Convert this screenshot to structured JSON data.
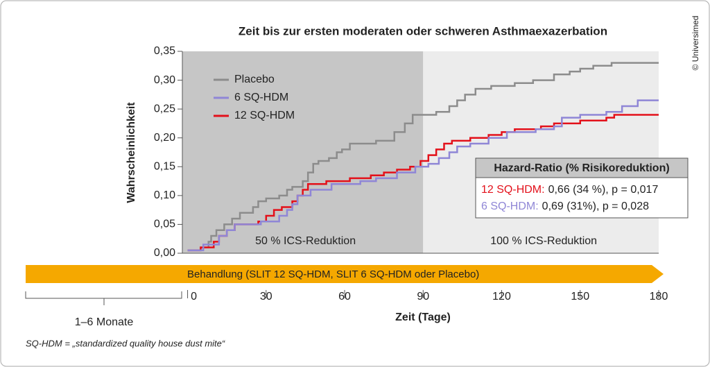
{
  "chart_data": {
    "type": "line",
    "title": "Zeit bis zur ersten moderaten oder schweren Asthmaexazerbation",
    "ylabel": "Wahrscheinlichkeit",
    "xlabel": "Zeit (Tage)",
    "xlim": [
      -2,
      180
    ],
    "xticks": [
      0,
      30,
      60,
      90,
      120,
      150,
      180
    ],
    "ylim": [
      0,
      0.35
    ],
    "yticks": [
      {
        "value": 0,
        "label": "0,00"
      },
      {
        "value": 0.05,
        "label": "0,05"
      },
      {
        "value": 0.1,
        "label": "0,10"
      },
      {
        "value": 0.15,
        "label": "0,15"
      },
      {
        "value": 0.2,
        "label": "0,20"
      },
      {
        "value": 0.25,
        "label": "0,25"
      },
      {
        "value": 0.3,
        "label": "0,30"
      },
      {
        "value": 0.35,
        "label": "0,35"
      }
    ],
    "regions": [
      {
        "label": "50 % ICS-Reduktion",
        "x": [
          -2,
          90
        ],
        "color": "#c6c6c6"
      },
      {
        "label": "100 % ICS-Reduktion",
        "x": [
          90,
          180
        ],
        "color": "#ececec"
      }
    ],
    "series": [
      {
        "name": "Placebo",
        "color": "#8c8c8c",
        "x": [
          0,
          5,
          8,
          9,
          11,
          14,
          17,
          20,
          25,
          27,
          30,
          35,
          38,
          40,
          44,
          46,
          48,
          50,
          54,
          57,
          59,
          62,
          72,
          79,
          83,
          86,
          95,
          100,
          103,
          106,
          110,
          116,
          125,
          132,
          140,
          146,
          150,
          155,
          162,
          180
        ],
        "values": [
          0.005,
          0.01,
          0.02,
          0.03,
          0.04,
          0.05,
          0.06,
          0.07,
          0.08,
          0.09,
          0.095,
          0.1,
          0.11,
          0.115,
          0.125,
          0.14,
          0.155,
          0.16,
          0.165,
          0.175,
          0.18,
          0.19,
          0.195,
          0.21,
          0.225,
          0.24,
          0.245,
          0.255,
          0.265,
          0.275,
          0.285,
          0.29,
          0.295,
          0.3,
          0.31,
          0.315,
          0.32,
          0.325,
          0.33,
          0.33
        ]
      },
      {
        "name": "6 SQ-HDM",
        "color": "#8f86d6",
        "x": [
          0,
          6,
          12,
          15,
          18,
          28,
          35,
          38,
          40,
          42,
          47,
          55,
          66,
          72,
          80,
          87,
          92,
          96,
          100,
          103,
          108,
          115,
          122,
          133,
          140,
          143,
          150,
          160,
          166,
          172,
          180
        ],
        "values": [
          0.005,
          0.015,
          0.03,
          0.04,
          0.05,
          0.055,
          0.065,
          0.075,
          0.085,
          0.1,
          0.11,
          0.12,
          0.125,
          0.13,
          0.14,
          0.15,
          0.155,
          0.165,
          0.175,
          0.185,
          0.19,
          0.2,
          0.21,
          0.215,
          0.22,
          0.235,
          0.24,
          0.245,
          0.255,
          0.265,
          0.265
        ]
      },
      {
        "name": "12 SQ-HDM",
        "color": "#e3101a",
        "x": [
          0,
          5,
          10,
          12,
          15,
          18,
          27,
          30,
          33,
          36,
          40,
          42,
          44,
          46,
          53,
          62,
          70,
          75,
          80,
          85,
          89,
          92,
          95,
          98,
          101,
          108,
          115,
          120,
          125,
          135,
          140,
          150,
          160,
          163,
          180
        ],
        "values": [
          0.005,
          0.01,
          0.02,
          0.03,
          0.04,
          0.05,
          0.055,
          0.065,
          0.075,
          0.08,
          0.09,
          0.1,
          0.11,
          0.12,
          0.125,
          0.13,
          0.135,
          0.14,
          0.145,
          0.15,
          0.16,
          0.17,
          0.18,
          0.19,
          0.195,
          0.2,
          0.205,
          0.21,
          0.215,
          0.22,
          0.225,
          0.23,
          0.235,
          0.24,
          0.24
        ]
      }
    ],
    "hazard_ratio": {
      "title": "Hazard-Ratio (% Risikoreduktion)",
      "rows": [
        {
          "label": "12 SQ-HDM:",
          "text": "0,66 (34 %), p = 0,017",
          "color": "#e3101a"
        },
        {
          "label": "6 SQ-HDM:",
          "text": "0,69 (31%), p = 0,028",
          "color": "#8f86d6"
        }
      ]
    },
    "treatment": "Behandlung (SLIT 12 SQ-HDM, SLIT 6 SQ-HDM oder Placebo)",
    "period_label": "1–6 Monate",
    "footnote": "SQ-HDM = „standardized quality house dust mite“",
    "credit": "© Universimed"
  }
}
